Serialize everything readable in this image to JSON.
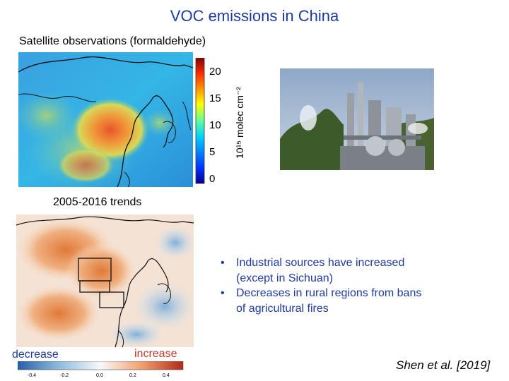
{
  "slide": {
    "title": "VOC emissions in China",
    "satellite_label": "Satellite observations (formaldehyde)",
    "trend_label": "2005-2016 trends",
    "decrease_label": "decrease",
    "increase_label": "increase",
    "citation": "Shen et al. [2019]",
    "bullets": [
      {
        "line1": "Industrial sources have increased",
        "line2": "(except in Sichuan)"
      },
      {
        "line1": "Decreases in rural regions from bans",
        "line2": "of agricultural fires"
      }
    ],
    "bullet_symbol": "•"
  },
  "colorbar_top": {
    "ticks": [
      "20",
      "15",
      "10",
      "5",
      "0"
    ],
    "unit_label": "10¹⁵ molec cm⁻²"
  },
  "colorbar_bottom": {
    "ticks": [
      "-0.4",
      "-0.2",
      "0.0",
      "0.2",
      "0.4"
    ]
  },
  "colors": {
    "title": "#1f3a9e",
    "bullets": "#1f3a9e",
    "decrease": "#1f3a9e",
    "increase": "#c0392b"
  }
}
